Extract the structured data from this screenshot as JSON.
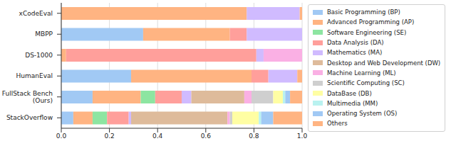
{
  "chart_data": {
    "type": "bar",
    "orientation": "horizontal",
    "stacked": true,
    "grid": true,
    "legend": "right",
    "categories": [
      "xCodeEval",
      "MBPP",
      "DS-1000",
      "HumanEval",
      "FullStack Bench (Ours)",
      "StackOverflow"
    ],
    "xlim": [
      0,
      1
    ],
    "xticks": [
      {
        "value": 0,
        "label": "0.0"
      },
      0.2,
      0.4,
      0.6,
      0.8,
      {
        "value": 1,
        "label": "1.0"
      }
    ],
    "series": [
      {
        "name": "Basic Programming (BP)",
        "color": "#a1c9f4",
        "values": [
          0,
          0.34,
          0,
          0.29,
          0.13,
          0.05
        ]
      },
      {
        "name": "Advanced Programming (AP)",
        "color": "#ffb482",
        "values": [
          0.77,
          0.36,
          0.02,
          0.5,
          0.2,
          0.08
        ]
      },
      {
        "name": "Software Engineering (SE)",
        "color": "#8de5a1",
        "values": [
          0,
          0,
          0,
          0,
          0.06,
          0.06
        ]
      },
      {
        "name": "Data Analysis (DA)",
        "color": "#ff9f9b",
        "values": [
          0,
          0.07,
          0.79,
          0.07,
          0.11,
          0.09
        ]
      },
      {
        "name": "Mathematics (MA)",
        "color": "#d0bbff",
        "values": [
          0.22,
          0.23,
          0.03,
          0.12,
          0.04,
          0.01
        ]
      },
      {
        "name": "Desktop and Web Development (DW)",
        "color": "#debb9b",
        "values": [
          0,
          0,
          0,
          0,
          0.22,
          0.4
        ]
      },
      {
        "name": "Machine Learning (ML)",
        "color": "#fab0e4",
        "values": [
          0,
          0,
          0.16,
          0,
          0.03,
          0.01
        ]
      },
      {
        "name": "Scientific Computing (SC)",
        "color": "#cfcfcf",
        "values": [
          0,
          0,
          0,
          0,
          0.09,
          0.01
        ]
      },
      {
        "name": "DataBase (DB)",
        "color": "#fffea3",
        "values": [
          0,
          0,
          0,
          0,
          0.04,
          0.11
        ]
      },
      {
        "name": "Multimedia (MM)",
        "color": "#b9f2f0",
        "values": [
          0,
          0,
          0,
          0,
          0.01,
          0.01
        ]
      },
      {
        "name": "Operating System (OS)",
        "color": "#a1c9f4",
        "values": [
          0,
          0,
          0,
          0,
          0.02,
          0.05
        ]
      },
      {
        "name": "Others",
        "color": "#ffb482",
        "values": [
          0.01,
          0,
          0,
          0.02,
          0.05,
          0.12
        ]
      }
    ]
  }
}
